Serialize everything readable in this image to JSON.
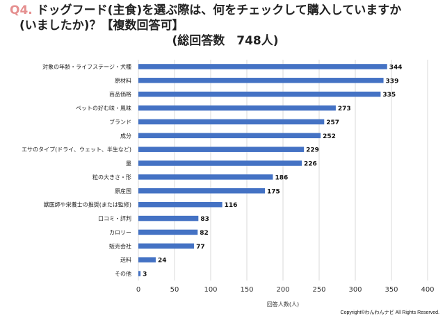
{
  "title": {
    "qnum": "Q4.",
    "line1": "ドッグフード(主食)を選ぶ際は、何をチェックして購入していますか",
    "line2": "(いましたか)？【複数回答可】",
    "line3": "(総回答数　748人)"
  },
  "copyright": "Copyright©わんわんナビ All Rights Reserved.",
  "chart_data": {
    "type": "bar",
    "orientation": "horizontal",
    "categories": [
      "対象の年齢・ライフステージ・犬種",
      "原材料",
      "商品価格",
      "ペットの好む味・風味",
      "ブランド",
      "成分",
      "エサのタイプ(ドライ、ウェット、半生など)",
      "量",
      "粒の大きさ・形",
      "原産国",
      "獣医師や栄養士の推奨(または監修)",
      "口コミ・評判",
      "カロリー",
      "販売会社",
      "送料",
      "その他"
    ],
    "values": [
      344,
      339,
      335,
      273,
      257,
      252,
      229,
      226,
      186,
      175,
      116,
      83,
      82,
      77,
      24,
      3
    ],
    "xlabel": "回答人数(人)",
    "xlim": [
      0,
      400
    ],
    "xticks": [
      0,
      50,
      100,
      150,
      200,
      250,
      300,
      350,
      400
    ],
    "grid": true,
    "bar_color": "#4472c4"
  }
}
